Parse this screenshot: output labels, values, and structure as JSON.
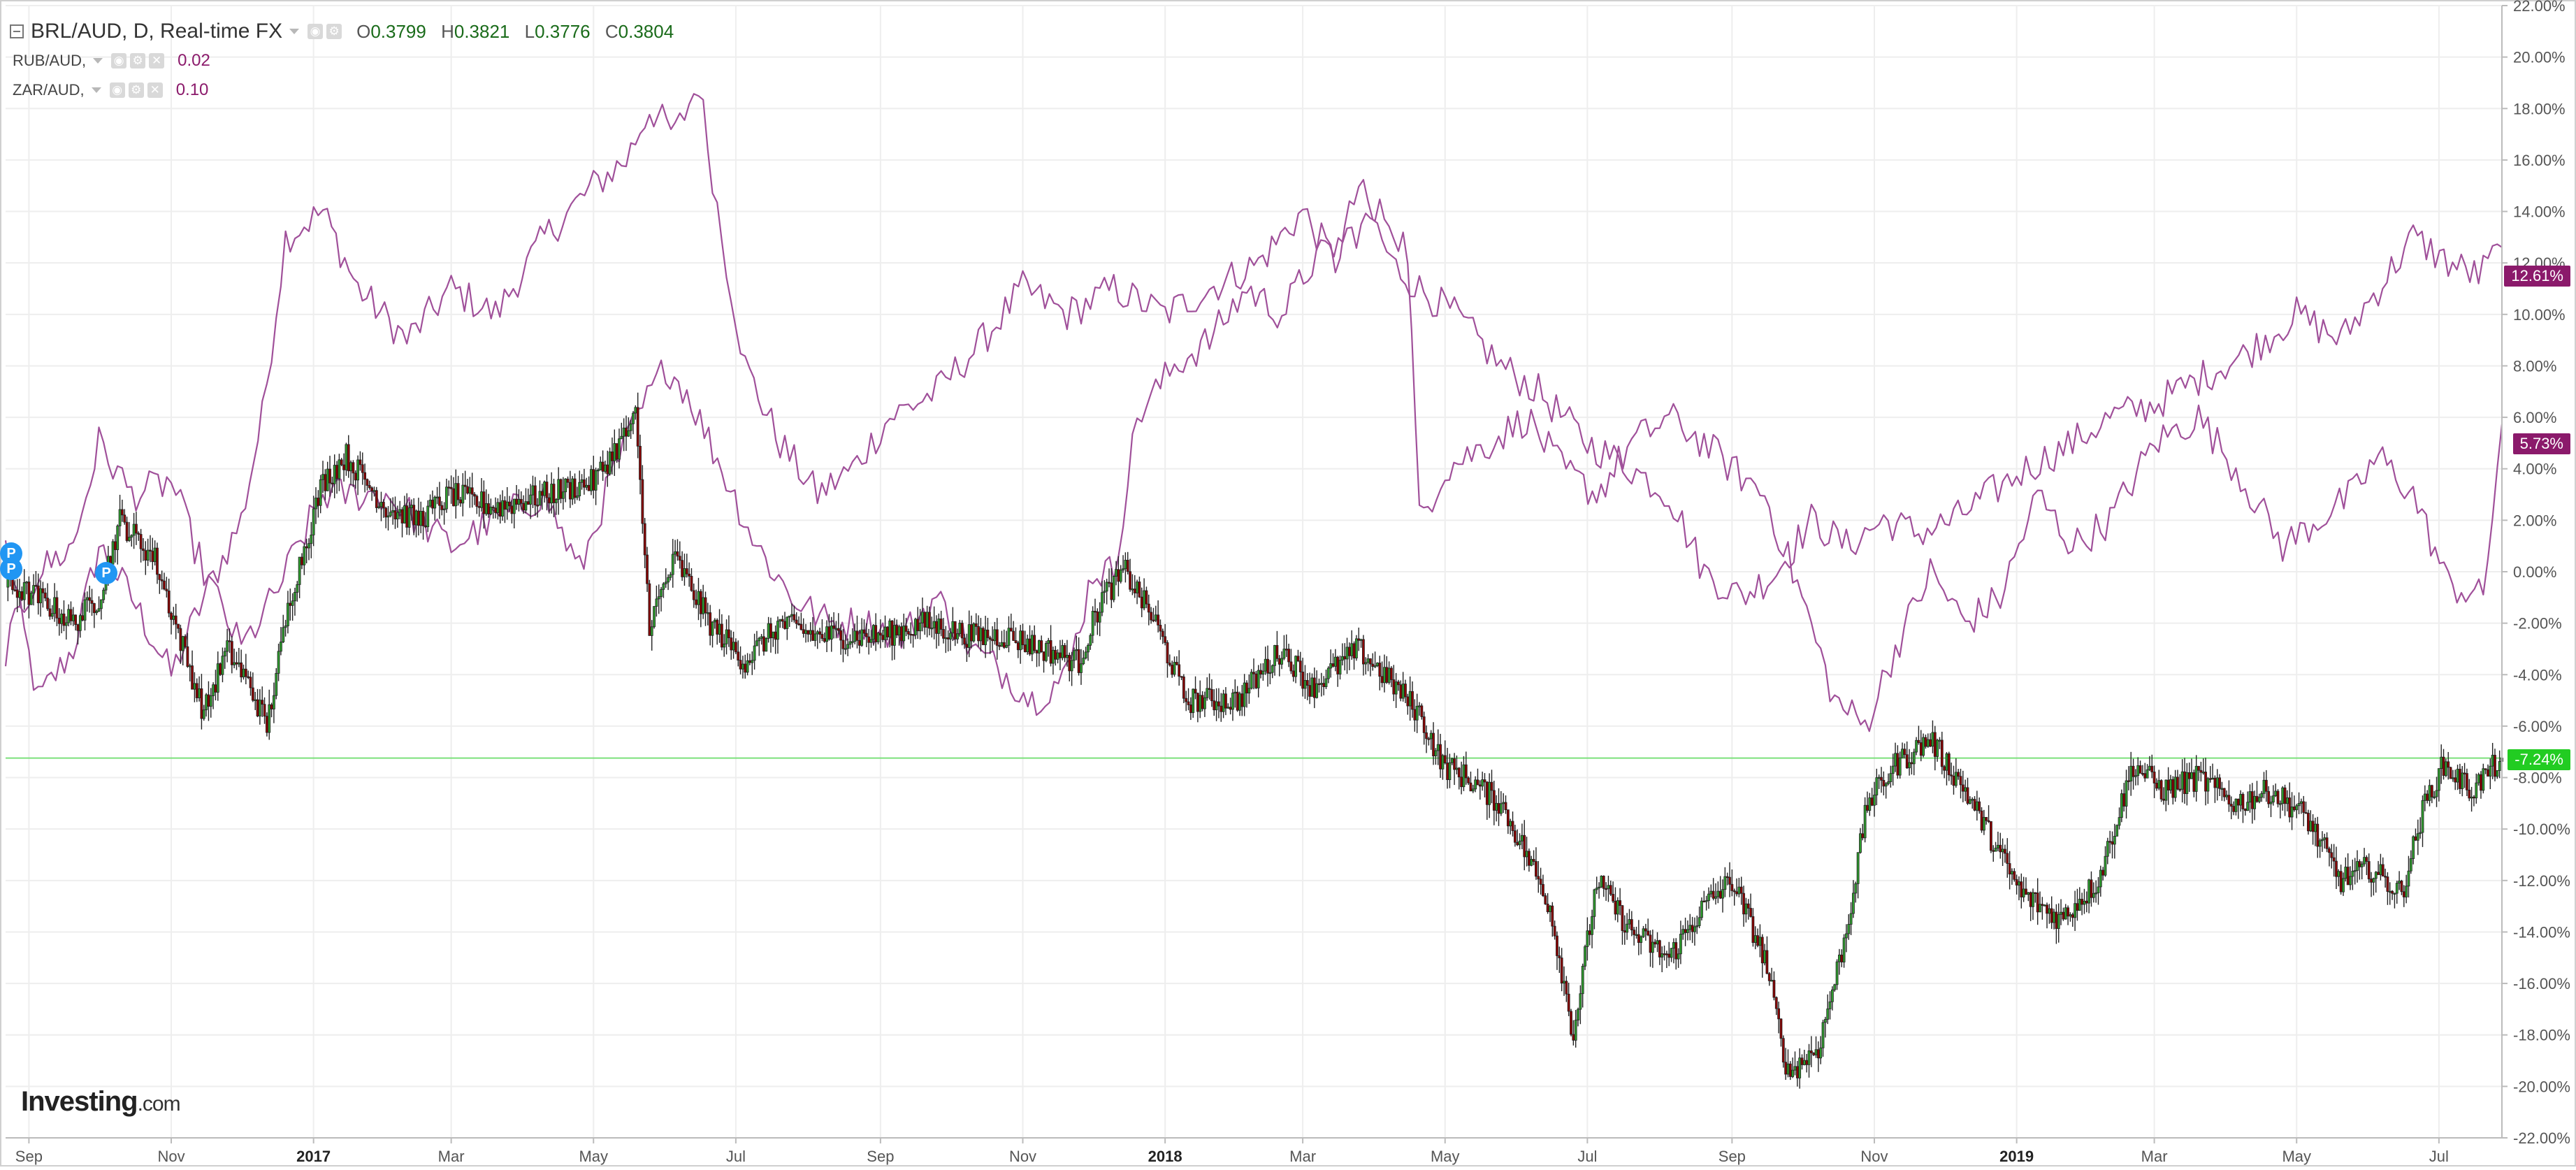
{
  "legend": {
    "main_symbol": "BRL/AUD, D, Real-time FX",
    "ohlc": {
      "o_label": "O",
      "o": "0.3799",
      "h_label": "H",
      "h": "0.3821",
      "l_label": "L",
      "l": "0.3776",
      "c_label": "C",
      "c": "0.3804"
    },
    "compare": [
      {
        "symbol": "RUB/AUD,",
        "value": "0.02"
      },
      {
        "symbol": "ZAR/AUD,",
        "value": "0.10"
      }
    ]
  },
  "badges": {
    "rub": "12.61%",
    "zar": "5.73%",
    "brl": "-7.24%"
  },
  "markers": {
    "p": "P"
  },
  "branding": {
    "logo_main": "Investing",
    "logo_domain": ".com"
  },
  "colors": {
    "up": "#2e9e2e",
    "down": "#8b0000",
    "compare": "#a0509a",
    "current_line": "#7be07b",
    "grid": "#eeeeee"
  },
  "chart_data": {
    "type": "line",
    "title": "BRL/AUD, D, Real-time FX",
    "ylabel": "",
    "xlabel": "",
    "y_unit": "%",
    "ylim": [
      -22,
      22
    ],
    "yticks": [
      22,
      20,
      18,
      16,
      14,
      12,
      10,
      8,
      6,
      4,
      2,
      0,
      -2,
      -4,
      -6,
      -8,
      -10,
      -12,
      -14,
      -16,
      -18,
      -20,
      -22
    ],
    "ytick_labels": [
      "22.00%",
      "20.00%",
      "18.00%",
      "16.00%",
      "14.00%",
      "12.00%",
      "10.00%",
      "8.00%",
      "6.00%",
      "4.00%",
      "2.00%",
      "0.00%",
      "-2.00%",
      "-4.00%",
      "-6.00%",
      "-8.00%",
      "-10.00%",
      "-12.00%",
      "-14.00%",
      "-16.00%",
      "-18.00%",
      "-20.00%",
      "-22.00%"
    ],
    "xlim": [
      "2016-08-22",
      "2019-07-28"
    ],
    "xticks": [
      {
        "label": "Sep",
        "date": "2016-09-01"
      },
      {
        "label": "Nov",
        "date": "2016-11-01"
      },
      {
        "label": "2017",
        "date": "2017-01-01"
      },
      {
        "label": "Mar",
        "date": "2017-03-01"
      },
      {
        "label": "May",
        "date": "2017-05-01"
      },
      {
        "label": "Jul",
        "date": "2017-07-01"
      },
      {
        "label": "Sep",
        "date": "2017-09-01"
      },
      {
        "label": "Nov",
        "date": "2017-11-01"
      },
      {
        "label": "2018",
        "date": "2018-01-01"
      },
      {
        "label": "Mar",
        "date": "2018-03-01"
      },
      {
        "label": "May",
        "date": "2018-05-01"
      },
      {
        "label": "Jul",
        "date": "2018-07-01"
      },
      {
        "label": "Sep",
        "date": "2018-09-01"
      },
      {
        "label": "Nov",
        "date": "2018-11-01"
      },
      {
        "label": "2019",
        "date": "2019-01-01"
      },
      {
        "label": "Mar",
        "date": "2019-03-01"
      },
      {
        "label": "May",
        "date": "2019-05-01"
      },
      {
        "label": "Jul",
        "date": "2019-07-01"
      }
    ],
    "current_level": -7.24,
    "series": [
      {
        "name": "BRL/AUD",
        "style": "candlestick",
        "x": [
          "2016-08-22",
          "2016-09-05",
          "2016-09-20",
          "2016-10-01",
          "2016-10-10",
          "2016-10-25",
          "2016-11-08",
          "2016-11-15",
          "2016-11-25",
          "2016-12-05",
          "2016-12-12",
          "2016-12-22",
          "2017-01-05",
          "2017-01-15",
          "2017-02-01",
          "2017-02-15",
          "2017-03-01",
          "2017-03-20",
          "2017-04-10",
          "2017-05-01",
          "2017-05-16",
          "2017-05-19",
          "2017-05-25",
          "2017-06-05",
          "2017-06-20",
          "2017-07-05",
          "2017-07-20",
          "2017-08-05",
          "2017-09-01",
          "2017-09-20",
          "2017-10-10",
          "2017-10-25",
          "2017-11-10",
          "2017-11-25",
          "2017-12-05",
          "2017-12-15",
          "2017-12-28",
          "2018-01-10",
          "2018-02-01",
          "2018-02-20",
          "2018-03-05",
          "2018-03-25",
          "2018-04-10",
          "2018-04-20",
          "2018-04-30",
          "2018-05-10",
          "2018-05-25",
          "2018-06-05",
          "2018-06-15",
          "2018-06-25",
          "2018-07-05",
          "2018-07-20",
          "2018-08-05",
          "2018-08-20",
          "2018-09-01",
          "2018-09-15",
          "2018-09-25",
          "2018-10-08",
          "2018-10-20",
          "2018-10-29",
          "2018-11-10",
          "2018-11-25",
          "2018-12-10",
          "2018-12-25",
          "2019-01-03",
          "2019-01-20",
          "2019-02-05",
          "2019-02-20",
          "2019-03-05",
          "2019-03-20",
          "2019-04-05",
          "2019-04-20",
          "2019-05-05",
          "2019-05-20",
          "2019-06-01",
          "2019-06-15",
          "2019-06-25",
          "2019-07-03",
          "2019-07-15",
          "2019-07-28"
        ],
        "values": [
          -0.5,
          -1.0,
          -2.0,
          -1.0,
          2.0,
          0.5,
          -3.5,
          -5.5,
          -3.0,
          -4.5,
          -6.0,
          -1.0,
          3.5,
          4.5,
          2.5,
          2.0,
          3.0,
          2.5,
          3.0,
          3.5,
          5.5,
          6.0,
          -2.0,
          0.5,
          -2.0,
          -3.5,
          -2.0,
          -2.5,
          -2.5,
          -2.0,
          -2.5,
          -2.5,
          -3.0,
          -3.5,
          -1.0,
          0.0,
          -2.0,
          -5.0,
          -5.0,
          -3.0,
          -4.5,
          -3.0,
          -4.5,
          -5.5,
          -7.5,
          -8.0,
          -9.0,
          -11.0,
          -13.0,
          -18.0,
          -12.0,
          -14.0,
          -15.0,
          -13.0,
          -12.0,
          -15.0,
          -19.5,
          -18.5,
          -14.0,
          -9.0,
          -7.5,
          -6.5,
          -8.5,
          -11.0,
          -12.5,
          -13.5,
          -12.0,
          -7.5,
          -8.5,
          -8.0,
          -9.0,
          -8.5,
          -9.5,
          -12.0,
          -11.5,
          -12.5,
          -9.0,
          -7.5,
          -8.5,
          -7.24
        ]
      },
      {
        "name": "RUB/AUD",
        "style": "line",
        "x": [
          "2016-08-22",
          "2016-09-05",
          "2016-09-20",
          "2016-10-01",
          "2016-10-15",
          "2016-11-01",
          "2016-11-15",
          "2016-12-01",
          "2016-12-10",
          "2016-12-20",
          "2017-01-05",
          "2017-01-20",
          "2017-02-10",
          "2017-03-01",
          "2017-03-20",
          "2017-04-10",
          "2017-05-01",
          "2017-05-15",
          "2017-05-25",
          "2017-06-05",
          "2017-06-15",
          "2017-06-25",
          "2017-07-05",
          "2017-07-20",
          "2017-08-05",
          "2017-08-20",
          "2017-09-05",
          "2017-09-25",
          "2017-10-15",
          "2017-11-01",
          "2017-11-20",
          "2017-12-10",
          "2018-01-01",
          "2018-01-20",
          "2018-02-10",
          "2018-03-01",
          "2018-03-15",
          "2018-03-25",
          "2018-04-08",
          "2018-04-20",
          "2018-05-05",
          "2018-05-25",
          "2018-06-10",
          "2018-07-01",
          "2018-07-20",
          "2018-08-05",
          "2018-08-20",
          "2018-09-05",
          "2018-09-20",
          "2018-10-05",
          "2018-10-20",
          "2018-11-05",
          "2018-11-20",
          "2018-12-05",
          "2018-12-20",
          "2019-01-05",
          "2019-01-25",
          "2019-02-10",
          "2019-03-01",
          "2019-03-20",
          "2019-04-10",
          "2019-05-01",
          "2019-05-20",
          "2019-06-05",
          "2019-06-20",
          "2019-07-05",
          "2019-07-18",
          "2019-07-28"
        ],
        "values": [
          1.0,
          -5.0,
          -3.0,
          1.0,
          -1.0,
          -4.0,
          -1.0,
          2.0,
          6.0,
          13.0,
          14.0,
          11.0,
          9.0,
          11.0,
          10.0,
          13.0,
          15.0,
          16.0,
          18.0,
          17.0,
          19.0,
          13.0,
          8.0,
          5.0,
          3.0,
          4.0,
          6.0,
          7.0,
          9.0,
          11.0,
          10.0,
          11.0,
          10.0,
          11.0,
          12.0,
          14.0,
          12.0,
          15.0,
          12.0,
          11.0,
          10.0,
          8.0,
          7.0,
          5.0,
          4.0,
          3.0,
          0.0,
          -1.0,
          0.0,
          2.0,
          1.0,
          2.0,
          1.5,
          2.0,
          3.0,
          4.0,
          5.0,
          6.0,
          6.5,
          7.5,
          8.5,
          10.0,
          9.0,
          11.0,
          13.0,
          12.0,
          11.5,
          12.61
        ]
      },
      {
        "name": "ZAR/AUD",
        "style": "line",
        "x": [
          "2016-08-22",
          "2016-09-05",
          "2016-09-20",
          "2016-10-01",
          "2016-10-15",
          "2016-11-01",
          "2016-11-15",
          "2016-12-01",
          "2016-12-15",
          "2017-01-05",
          "2017-02-01",
          "2017-03-01",
          "2017-03-20",
          "2017-04-10",
          "2017-04-25",
          "2017-05-10",
          "2017-05-20",
          "2017-06-01",
          "2017-06-10",
          "2017-06-25",
          "2017-07-10",
          "2017-07-25",
          "2017-08-10",
          "2017-08-25",
          "2017-09-10",
          "2017-09-25",
          "2017-10-10",
          "2017-10-25",
          "2017-11-05",
          "2017-11-20",
          "2017-12-01",
          "2017-12-10",
          "2017-12-20",
          "2018-01-05",
          "2018-01-20",
          "2018-02-05",
          "2018-02-20",
          "2018-03-05",
          "2018-03-20",
          "2018-04-05",
          "2018-04-15",
          "2018-04-20",
          "2018-05-01",
          "2018-05-20",
          "2018-06-05",
          "2018-06-20",
          "2018-07-05",
          "2018-07-20",
          "2018-08-05",
          "2018-08-20",
          "2018-09-01",
          "2018-09-15",
          "2018-10-01",
          "2018-10-15",
          "2018-10-28",
          "2018-11-10",
          "2018-11-25",
          "2018-12-10",
          "2018-12-25",
          "2019-01-10",
          "2019-01-25",
          "2019-02-10",
          "2019-03-01",
          "2019-03-20",
          "2019-04-05",
          "2019-04-25",
          "2019-05-10",
          "2019-05-25",
          "2019-06-05",
          "2019-06-20",
          "2019-07-05",
          "2019-07-20",
          "2019-07-28"
        ],
        "values": [
          -3.0,
          0.0,
          1.0,
          5.0,
          3.0,
          3.5,
          0.0,
          -3.0,
          -1.0,
          3.0,
          3.0,
          1.0,
          2.0,
          3.0,
          0.0,
          4.0,
          6.0,
          8.0,
          7.0,
          4.0,
          1.0,
          -1.0,
          -2.0,
          -2.0,
          -2.5,
          -1.0,
          -3.0,
          -4.0,
          -5.0,
          -4.0,
          0.0,
          0.0,
          6.0,
          8.0,
          9.0,
          11.0,
          10.0,
          12.0,
          13.0,
          14.0,
          12.5,
          2.0,
          4.0,
          5.0,
          6.0,
          4.0,
          3.0,
          5.0,
          6.0,
          5.0,
          4.0,
          3.0,
          -1.0,
          -5.0,
          -6.0,
          -3.0,
          0.0,
          -2.0,
          -1.0,
          3.0,
          1.0,
          2.0,
          5.0,
          6.0,
          4.0,
          1.0,
          2.0,
          3.0,
          4.5,
          3.0,
          -0.5,
          -1.0,
          5.73
        ]
      }
    ]
  }
}
